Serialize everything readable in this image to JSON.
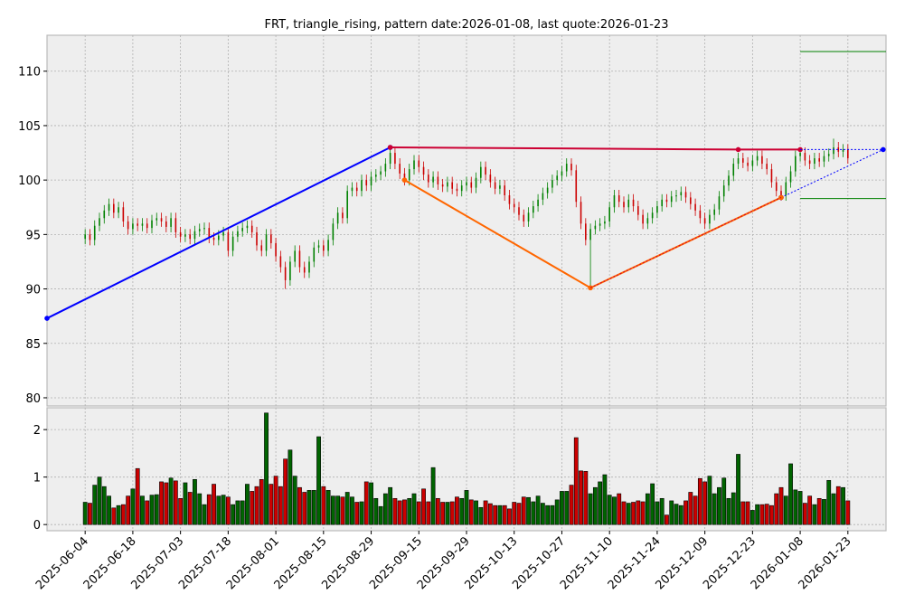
{
  "chart_data": {
    "type": "candlestick",
    "title": "FRT, triangle_rising, pattern date:2026-01-08, last quote:2026-01-23",
    "x": [
      "2025-06-04",
      "2025-06-05",
      "2025-06-06",
      "2025-06-09",
      "2025-06-10",
      "2025-06-11",
      "2025-06-12",
      "2025-06-13",
      "2025-06-16",
      "2025-06-17",
      "2025-06-18",
      "2025-06-20",
      "2025-06-23",
      "2025-06-24",
      "2025-06-25",
      "2025-06-26",
      "2025-06-27",
      "2025-06-30",
      "2025-07-01",
      "2025-07-02",
      "2025-07-03",
      "2025-07-07",
      "2025-07-08",
      "2025-07-09",
      "2025-07-10",
      "2025-07-11",
      "2025-07-14",
      "2025-07-15",
      "2025-07-16",
      "2025-07-17",
      "2025-07-18",
      "2025-07-21",
      "2025-07-22",
      "2025-07-23",
      "2025-07-24",
      "2025-07-25",
      "2025-07-28",
      "2025-07-29",
      "2025-07-30",
      "2025-07-31",
      "2025-08-01",
      "2025-08-04",
      "2025-08-05",
      "2025-08-06",
      "2025-08-07",
      "2025-08-08",
      "2025-08-11",
      "2025-08-12",
      "2025-08-13",
      "2025-08-14",
      "2025-08-15",
      "2025-08-18",
      "2025-08-19",
      "2025-08-20",
      "2025-08-21",
      "2025-08-22",
      "2025-08-25",
      "2025-08-26",
      "2025-08-27",
      "2025-08-28",
      "2025-08-29",
      "2025-09-02",
      "2025-09-03",
      "2025-09-04",
      "2025-09-05",
      "2025-09-08",
      "2025-09-09",
      "2025-09-10",
      "2025-09-11",
      "2025-09-12",
      "2025-09-15",
      "2025-09-16",
      "2025-09-17",
      "2025-09-18",
      "2025-09-19",
      "2025-09-22",
      "2025-09-23",
      "2025-09-24",
      "2025-09-25",
      "2025-09-26",
      "2025-09-29",
      "2025-09-30",
      "2025-10-01",
      "2025-10-02",
      "2025-10-03",
      "2025-10-06",
      "2025-10-07",
      "2025-10-08",
      "2025-10-09",
      "2025-10-10",
      "2025-10-13",
      "2025-10-14",
      "2025-10-15",
      "2025-10-16",
      "2025-10-17",
      "2025-10-20",
      "2025-10-21",
      "2025-10-22",
      "2025-10-23",
      "2025-10-24",
      "2025-10-27",
      "2025-10-28",
      "2025-10-29",
      "2025-10-30",
      "2025-10-31",
      "2025-11-03",
      "2025-11-04",
      "2025-11-05",
      "2025-11-06",
      "2025-11-07",
      "2025-11-10",
      "2025-11-11",
      "2025-11-12",
      "2025-11-13",
      "2025-11-14",
      "2025-11-17",
      "2025-11-18",
      "2025-11-19",
      "2025-11-20",
      "2025-11-21",
      "2025-11-24",
      "2025-11-25",
      "2025-11-26",
      "2025-11-28",
      "2025-12-01",
      "2025-12-02",
      "2025-12-03",
      "2025-12-04",
      "2025-12-05",
      "2025-12-08",
      "2025-12-09",
      "2025-12-10",
      "2025-12-11",
      "2025-12-12",
      "2025-12-15",
      "2025-12-16",
      "2025-12-17",
      "2025-12-18",
      "2025-12-19",
      "2025-12-22",
      "2025-12-23",
      "2025-12-24",
      "2025-12-26",
      "2025-12-29",
      "2025-12-30",
      "2025-12-31",
      "2026-01-02",
      "2026-01-05",
      "2026-01-06",
      "2026-01-07",
      "2026-01-08",
      "2026-01-09",
      "2026-01-12",
      "2026-01-13",
      "2026-01-14",
      "2026-01-15",
      "2026-01-16",
      "2026-01-20",
      "2026-01-21",
      "2026-01-22",
      "2026-01-23"
    ],
    "open": [
      94.6,
      95.0,
      94.5,
      95.8,
      96.5,
      97.2,
      97.8,
      97.0,
      97.5,
      96.2,
      95.5,
      96.0,
      95.8,
      96.0,
      95.6,
      96.3,
      96.5,
      96.2,
      95.7,
      96.5,
      95.2,
      94.8,
      95.0,
      94.6,
      95.3,
      95.5,
      95.6,
      94.7,
      94.5,
      94.9,
      95.2,
      93.5,
      94.8,
      95.3,
      95.6,
      95.8,
      95.2,
      94.0,
      93.5,
      95.0,
      94.2,
      93.0,
      92.0,
      90.8,
      92.5,
      93.5,
      92.0,
      91.5,
      92.5,
      93.8,
      94.0,
      93.5,
      94.5,
      96.0,
      97.0,
      96.5,
      99.0,
      99.3,
      99.0,
      100.0,
      99.5,
      100.3,
      100.5,
      100.8,
      101.5,
      102.5,
      101.5,
      100.6,
      100.0,
      101.0,
      101.8,
      101.2,
      100.5,
      99.8,
      100.3,
      99.6,
      99.4,
      99.8,
      99.2,
      99.0,
      99.5,
      99.8,
      99.3,
      100.2,
      101.2,
      100.5,
      99.8,
      99.2,
      99.5,
      98.6,
      97.8,
      97.5,
      96.8,
      96.2,
      97.0,
      97.6,
      98.2,
      98.8,
      99.3,
      100.0,
      100.4,
      100.8,
      101.5,
      100.9,
      98.0,
      96.0,
      94.5,
      95.5,
      95.8,
      96.0,
      96.2,
      97.5,
      98.6,
      98.0,
      97.5,
      98.2,
      97.6,
      96.8,
      96.0,
      96.5,
      97.0,
      97.6,
      98.2,
      98.0,
      98.5,
      98.6,
      98.9,
      98.4,
      97.8,
      97.2,
      96.5,
      96.0,
      96.8,
      97.3,
      98.5,
      99.5,
      100.4,
      101.5,
      102.0,
      101.6,
      101.3,
      101.8,
      102.2,
      101.5,
      101.0,
      99.8,
      99.0,
      98.6,
      99.8,
      100.8,
      102.2,
      102.5,
      101.8,
      101.5,
      102.0,
      101.7,
      102.2,
      102.4,
      103.0,
      102.6,
      102.8
    ],
    "high": [
      95.5,
      95.5,
      96.3,
      97.0,
      97.7,
      98.3,
      98.3,
      98.0,
      98.0,
      96.7,
      96.5,
      96.5,
      96.5,
      96.5,
      96.8,
      97.0,
      97.0,
      96.7,
      97.0,
      97.0,
      95.7,
      95.5,
      95.5,
      95.8,
      96.0,
      96.1,
      96.1,
      95.2,
      95.4,
      95.7,
      95.7,
      95.3,
      95.8,
      96.1,
      96.3,
      96.3,
      95.7,
      94.5,
      95.5,
      95.5,
      94.7,
      93.5,
      92.5,
      93.0,
      94.0,
      94.0,
      92.5,
      93.0,
      94.3,
      94.5,
      94.5,
      95.0,
      96.5,
      97.5,
      97.5,
      99.5,
      99.8,
      99.8,
      100.5,
      100.5,
      100.8,
      101.0,
      101.3,
      102.0,
      103.0,
      103.0,
      102.0,
      101.1,
      101.5,
      102.3,
      102.3,
      101.7,
      101.0,
      100.8,
      100.8,
      100.1,
      100.3,
      100.3,
      99.7,
      100.0,
      100.3,
      100.3,
      100.7,
      101.7,
      101.7,
      101.0,
      100.3,
      100.0,
      100.0,
      99.1,
      98.3,
      98.0,
      97.3,
      97.5,
      98.1,
      98.7,
      99.3,
      99.8,
      100.5,
      100.9,
      101.3,
      102.0,
      102.0,
      101.4,
      98.5,
      96.5,
      96.0,
      96.3,
      96.5,
      96.7,
      98.0,
      99.1,
      99.1,
      98.5,
      98.7,
      98.7,
      98.1,
      97.3,
      97.0,
      97.5,
      98.1,
      98.7,
      98.7,
      99.0,
      99.1,
      99.4,
      99.4,
      98.9,
      98.3,
      97.7,
      97.0,
      97.3,
      97.8,
      99.0,
      100.0,
      100.9,
      102.0,
      102.5,
      102.5,
      102.1,
      102.3,
      102.7,
      102.7,
      102.0,
      101.5,
      100.3,
      99.5,
      100.3,
      101.3,
      102.7,
      103.0,
      103.0,
      102.3,
      102.5,
      102.5,
      102.7,
      102.9,
      103.8,
      103.5,
      103.3,
      103.3
    ],
    "low": [
      94.1,
      94.0,
      94.0,
      95.3,
      96.0,
      96.7,
      96.5,
      96.5,
      95.7,
      95.0,
      95.0,
      95.3,
      95.3,
      95.1,
      95.1,
      95.8,
      95.7,
      95.2,
      95.2,
      94.7,
      94.3,
      94.3,
      94.1,
      94.1,
      94.8,
      95.0,
      94.2,
      94.0,
      94.0,
      94.4,
      93.0,
      93.0,
      94.3,
      94.8,
      95.1,
      94.7,
      93.5,
      93.0,
      93.0,
      93.7,
      92.5,
      91.5,
      90.0,
      90.3,
      92.0,
      91.5,
      91.0,
      91.0,
      92.0,
      93.3,
      93.0,
      93.0,
      94.0,
      95.5,
      96.0,
      96.0,
      98.5,
      98.5,
      98.5,
      99.0,
      99.0,
      99.8,
      100.0,
      100.3,
      101.0,
      101.0,
      100.1,
      99.5,
      99.5,
      100.5,
      100.7,
      100.0,
      99.3,
      99.3,
      99.1,
      98.9,
      98.9,
      98.7,
      98.5,
      98.5,
      99.0,
      98.8,
      98.8,
      99.7,
      100.0,
      99.3,
      98.7,
      98.7,
      98.1,
      97.3,
      97.0,
      96.3,
      95.7,
      95.7,
      96.5,
      97.1,
      97.7,
      98.3,
      98.8,
      99.5,
      99.9,
      100.3,
      100.4,
      97.5,
      95.5,
      94.0,
      90.1,
      95.0,
      95.3,
      95.5,
      95.7,
      97.0,
      97.5,
      97.0,
      97.0,
      97.1,
      96.3,
      95.5,
      95.5,
      96.0,
      96.5,
      97.1,
      97.5,
      97.5,
      98.0,
      98.1,
      97.9,
      97.3,
      96.7,
      96.0,
      95.5,
      95.5,
      96.3,
      96.8,
      98.0,
      99.0,
      99.9,
      101.0,
      101.1,
      100.8,
      100.8,
      101.3,
      101.0,
      100.5,
      99.3,
      98.5,
      98.1,
      98.1,
      99.3,
      100.3,
      101.7,
      101.3,
      101.0,
      101.0,
      101.2,
      101.2,
      101.7,
      101.9,
      102.1,
      102.1,
      101.5
    ],
    "close": [
      95.0,
      94.5,
      95.8,
      96.5,
      97.2,
      97.8,
      97.0,
      97.5,
      96.2,
      95.5,
      96.0,
      95.8,
      96.0,
      95.6,
      96.3,
      96.5,
      96.2,
      95.7,
      96.5,
      95.2,
      94.8,
      95.0,
      94.6,
      95.3,
      95.5,
      95.6,
      94.7,
      94.5,
      94.9,
      95.2,
      93.5,
      94.8,
      95.3,
      95.6,
      95.8,
      95.2,
      94.0,
      93.5,
      95.0,
      94.2,
      93.0,
      92.0,
      90.8,
      92.5,
      93.5,
      92.0,
      91.5,
      92.5,
      93.8,
      94.0,
      93.5,
      94.5,
      96.0,
      97.0,
      96.5,
      99.0,
      99.3,
      99.0,
      100.0,
      99.5,
      100.3,
      100.5,
      100.8,
      101.5,
      102.5,
      101.5,
      100.6,
      100.0,
      101.0,
      101.8,
      101.2,
      100.5,
      99.8,
      100.3,
      99.6,
      99.4,
      99.8,
      99.2,
      99.0,
      99.5,
      99.8,
      99.3,
      100.2,
      101.2,
      100.5,
      99.8,
      99.2,
      99.5,
      98.6,
      97.8,
      97.5,
      96.8,
      96.2,
      97.0,
      97.6,
      98.2,
      98.8,
      99.3,
      100.0,
      100.4,
      100.8,
      101.5,
      100.9,
      98.0,
      96.0,
      94.5,
      95.5,
      95.8,
      96.0,
      96.2,
      97.5,
      98.6,
      98.0,
      97.5,
      98.2,
      97.6,
      96.8,
      96.0,
      96.5,
      97.0,
      97.6,
      98.2,
      98.0,
      98.5,
      98.6,
      98.9,
      98.4,
      97.8,
      97.2,
      96.5,
      96.0,
      96.8,
      97.3,
      98.5,
      99.5,
      100.4,
      101.5,
      102.0,
      101.6,
      101.3,
      101.8,
      102.2,
      101.5,
      101.0,
      99.8,
      99.0,
      98.6,
      99.8,
      100.8,
      102.2,
      102.5,
      101.8,
      101.5,
      102.0,
      101.7,
      102.2,
      102.4,
      103.0,
      102.6,
      102.8,
      102.0
    ],
    "volume": [
      0.47,
      0.45,
      0.83,
      1.0,
      0.8,
      0.6,
      0.35,
      0.4,
      0.42,
      0.6,
      0.75,
      1.18,
      0.6,
      0.5,
      0.62,
      0.63,
      0.9,
      0.88,
      0.98,
      0.92,
      0.55,
      0.88,
      0.68,
      0.95,
      0.65,
      0.42,
      0.63,
      0.85,
      0.6,
      0.62,
      0.58,
      0.42,
      0.5,
      0.5,
      0.85,
      0.7,
      0.8,
      0.95,
      2.35,
      0.85,
      1.02,
      0.8,
      1.38,
      1.57,
      1.02,
      0.78,
      0.68,
      0.72,
      0.72,
      1.85,
      0.8,
      0.72,
      0.6,
      0.6,
      0.58,
      0.68,
      0.58,
      0.47,
      0.48,
      0.9,
      0.88,
      0.55,
      0.38,
      0.65,
      0.78,
      0.55,
      0.5,
      0.52,
      0.55,
      0.65,
      0.48,
      0.75,
      0.48,
      1.2,
      0.55,
      0.47,
      0.47,
      0.48,
      0.58,
      0.55,
      0.72,
      0.52,
      0.5,
      0.36,
      0.5,
      0.44,
      0.4,
      0.4,
      0.4,
      0.33,
      0.47,
      0.45,
      0.58,
      0.57,
      0.48,
      0.6,
      0.45,
      0.4,
      0.4,
      0.52,
      0.7,
      0.7,
      0.83,
      1.83,
      1.13,
      1.12,
      0.65,
      0.78,
      0.9,
      1.05,
      0.62,
      0.58,
      0.65,
      0.48,
      0.45,
      0.47,
      0.5,
      0.48,
      0.65,
      0.86,
      0.48,
      0.55,
      0.2,
      0.5,
      0.43,
      0.4,
      0.5,
      0.68,
      0.6,
      0.97,
      0.9,
      1.02,
      0.65,
      0.78,
      0.98,
      0.55,
      0.67,
      1.48,
      0.48,
      0.48,
      0.3,
      0.42,
      0.42,
      0.43,
      0.4,
      0.65,
      0.78,
      0.6,
      1.28,
      0.73,
      0.7,
      0.45,
      0.6,
      0.42,
      0.55,
      0.53,
      0.93,
      0.65,
      0.8,
      0.78,
      0.5
    ],
    "up_color": "#008000",
    "down_color": "#cc0000",
    "xlim": [
      -8,
      168
    ],
    "xticks": [
      0,
      10,
      20,
      30,
      40,
      50,
      60,
      70,
      80,
      90,
      100,
      110,
      120,
      130,
      140,
      150,
      160
    ],
    "ylim": [
      79.25,
      113.3
    ],
    "yticks": [
      80,
      85,
      90,
      95,
      100,
      105,
      110
    ],
    "volume_ylim": [
      -0.13,
      2.46
    ],
    "volume_yticks": [
      0,
      1,
      2
    ],
    "grid": true,
    "overlays": [
      {
        "color": "#0000ff",
        "style": "solid",
        "width": 2,
        "markers": true,
        "points": [
          [
            -8,
            87.3
          ],
          [
            64,
            103.0
          ]
        ]
      },
      {
        "color": "#0000ff",
        "style": "dotted",
        "width": 1,
        "markers": true,
        "points": [
          [
            146,
            98.4
          ],
          [
            167.4,
            102.8
          ]
        ]
      },
      {
        "color": "#ff6600",
        "style": "solid",
        "width": 2,
        "markers": true,
        "points": [
          [
            67,
            100.0
          ],
          [
            106,
            90.1
          ],
          [
            146,
            98.4
          ]
        ]
      },
      {
        "color": "#cc0033",
        "style": "solid",
        "width": 2,
        "markers": true,
        "points": [
          [
            64,
            103.0
          ],
          [
            137,
            102.8
          ],
          [
            150,
            102.8
          ]
        ]
      },
      {
        "color": "#cc0033",
        "style": "dotted",
        "width": 1,
        "markers": false,
        "points": [
          [
            106,
            90.1
          ],
          [
            146,
            98.4
          ]
        ]
      },
      {
        "color": "#0000ff",
        "style": "dotted",
        "width": 1,
        "markers": false,
        "points": [
          [
            150,
            102.8
          ],
          [
            167.4,
            102.8
          ]
        ]
      },
      {
        "color": "#008000",
        "style": "solid",
        "width": 1,
        "markers": false,
        "points": [
          [
            150,
            111.8
          ],
          [
            168,
            111.8
          ]
        ]
      },
      {
        "color": "#008000",
        "style": "solid",
        "width": 1,
        "markers": false,
        "points": [
          [
            150,
            98.3
          ],
          [
            168,
            98.3
          ]
        ]
      }
    ]
  }
}
